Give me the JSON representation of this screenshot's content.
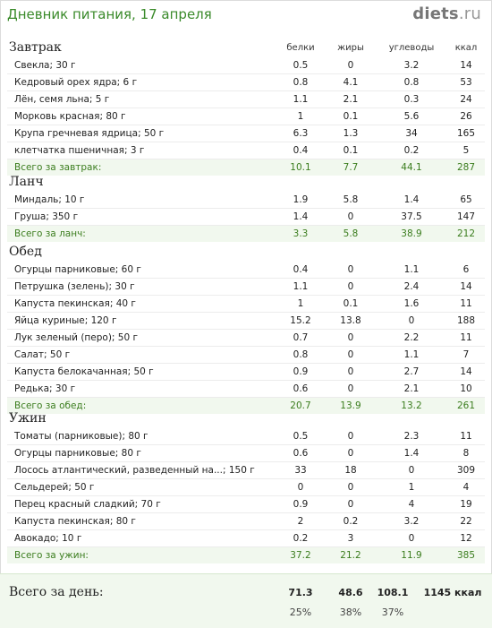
{
  "header": {
    "title": "Дневник питания, 17 апреля",
    "logo_main": "diets",
    "logo_suffix": ".ru"
  },
  "columns": {
    "protein": "белки",
    "fat": "жиры",
    "carbs": "углеводы",
    "kcal": "ккал"
  },
  "meals": [
    {
      "title": "Завтрак",
      "items": [
        {
          "name": "Свекла; 30 г",
          "p": "0.5",
          "f": "0",
          "c": "3.2",
          "k": "14"
        },
        {
          "name": "Кедровый орех ядра; 6 г",
          "p": "0.8",
          "f": "4.1",
          "c": "0.8",
          "k": "53"
        },
        {
          "name": "Лён, семя льна; 5 г",
          "p": "1.1",
          "f": "2.1",
          "c": "0.3",
          "k": "24"
        },
        {
          "name": "Морковь красная; 80 г",
          "p": "1",
          "f": "0.1",
          "c": "5.6",
          "k": "26"
        },
        {
          "name": "Крупа гречневая ядрица; 50 г",
          "p": "6.3",
          "f": "1.3",
          "c": "34",
          "k": "165"
        },
        {
          "name": "клетчатка пшеничная; 3 г",
          "p": "0.4",
          "f": "0.1",
          "c": "0.2",
          "k": "5"
        }
      ],
      "total": {
        "name": "Всего за завтрак:",
        "p": "10.1",
        "f": "7.7",
        "c": "44.1",
        "k": "287"
      }
    },
    {
      "title": "Ланч",
      "items": [
        {
          "name": "Миндаль; 10 г",
          "p": "1.9",
          "f": "5.8",
          "c": "1.4",
          "k": "65"
        },
        {
          "name": "Груша; 350 г",
          "p": "1.4",
          "f": "0",
          "c": "37.5",
          "k": "147"
        }
      ],
      "total": {
        "name": "Всего за ланч:",
        "p": "3.3",
        "f": "5.8",
        "c": "38.9",
        "k": "212"
      }
    },
    {
      "title": "Обед",
      "items": [
        {
          "name": "Огурцы парниковые; 60 г",
          "p": "0.4",
          "f": "0",
          "c": "1.1",
          "k": "6"
        },
        {
          "name": "Петрушка (зелень); 30 г",
          "p": "1.1",
          "f": "0",
          "c": "2.4",
          "k": "14"
        },
        {
          "name": "Капуста пекинская; 40 г",
          "p": "1",
          "f": "0.1",
          "c": "1.6",
          "k": "11"
        },
        {
          "name": "Яйца куриные; 120 г",
          "p": "15.2",
          "f": "13.8",
          "c": "0",
          "k": "188"
        },
        {
          "name": "Лук зеленый (перо); 50 г",
          "p": "0.7",
          "f": "0",
          "c": "2.2",
          "k": "11"
        },
        {
          "name": "Салат; 50 г",
          "p": "0.8",
          "f": "0",
          "c": "1.1",
          "k": "7"
        },
        {
          "name": "Капуста белокачанная; 50 г",
          "p": "0.9",
          "f": "0",
          "c": "2.7",
          "k": "14"
        },
        {
          "name": "Редька; 30 г",
          "p": "0.6",
          "f": "0",
          "c": "2.1",
          "k": "10"
        }
      ],
      "total": {
        "name": "Всего за обед:",
        "p": "20.7",
        "f": "13.9",
        "c": "13.2",
        "k": "261"
      }
    },
    {
      "title": "Ужин",
      "items": [
        {
          "name": "Томаты (парниковые); 80 г",
          "p": "0.5",
          "f": "0",
          "c": "2.3",
          "k": "11"
        },
        {
          "name": "Огурцы парниковые; 80 г",
          "p": "0.6",
          "f": "0",
          "c": "1.4",
          "k": "8"
        },
        {
          "name": "Лосось атлантический, разведенный на...; 150 г",
          "p": "33",
          "f": "18",
          "c": "0",
          "k": "309"
        },
        {
          "name": "Сельдерей; 50 г",
          "p": "0",
          "f": "0",
          "c": "1",
          "k": "4"
        },
        {
          "name": "Перец красный сладкий; 70 г",
          "p": "0.9",
          "f": "0",
          "c": "4",
          "k": "19"
        },
        {
          "name": "Капуста пекинская; 80 г",
          "p": "2",
          "f": "0.2",
          "c": "3.2",
          "k": "22"
        },
        {
          "name": "Авокадо; 10 г",
          "p": "0.2",
          "f": "3",
          "c": "0",
          "k": "12"
        }
      ],
      "total": {
        "name": "Всего за ужин:",
        "p": "37.2",
        "f": "21.2",
        "c": "11.9",
        "k": "385"
      }
    }
  ],
  "day_total": {
    "label": "Всего за день:",
    "p": "71.3",
    "f": "48.6",
    "c": "108.1",
    "k": "1145 ккал",
    "p_pct": "25%",
    "f_pct": "38%",
    "c_pct": "37%"
  }
}
